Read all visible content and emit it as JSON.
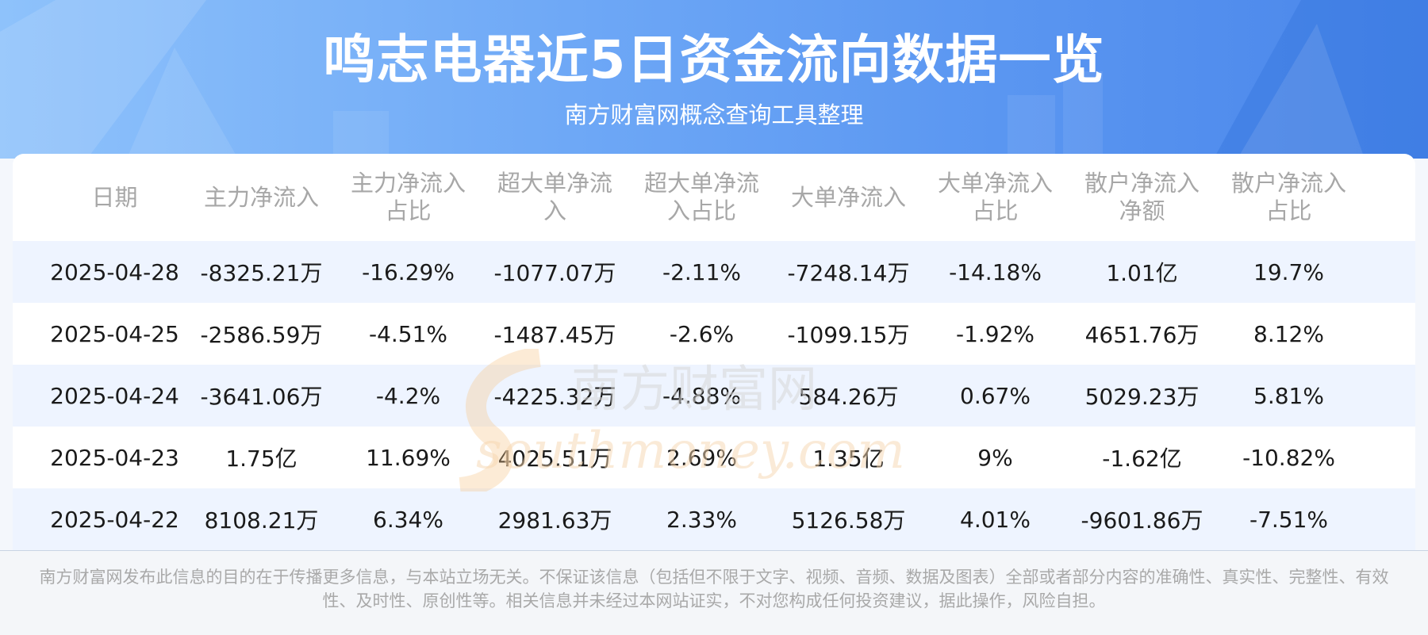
{
  "header": {
    "title": "鸣志电器近5日资金流向数据一览",
    "subtitle": "南方财富网概念查询工具整理"
  },
  "chart_data": {
    "type": "table",
    "columns": [
      "日期",
      "主力净流入",
      "主力净流入\n占比",
      "超大单净流\n入",
      "超大单净流\n入占比",
      "大单净流入",
      "大单净流入\n占比",
      "散户净流入\n净额",
      "散户净流入\n占比"
    ],
    "rows": [
      [
        "2025-04-28",
        "-8325.21万",
        "-16.29%",
        "-1077.07万",
        "-2.11%",
        "-7248.14万",
        "-14.18%",
        "1.01亿",
        "19.7%"
      ],
      [
        "2025-04-25",
        "-2586.59万",
        "-4.51%",
        "-1487.45万",
        "-2.6%",
        "-1099.15万",
        "-1.92%",
        "4651.76万",
        "8.12%"
      ],
      [
        "2025-04-24",
        "-3641.06万",
        "-4.2%",
        "-4225.32万",
        "-4.88%",
        "584.26万",
        "0.67%",
        "5029.23万",
        "5.81%"
      ],
      [
        "2025-04-23",
        "1.75亿",
        "11.69%",
        "4025.51万",
        "2.69%",
        "1.35亿",
        "9%",
        "-1.62亿",
        "-10.82%"
      ],
      [
        "2025-04-22",
        "8108.21万",
        "6.34%",
        "2981.63万",
        "2.33%",
        "5126.58万",
        "4.01%",
        "-9601.86万",
        "-7.51%"
      ]
    ]
  },
  "watermark": {
    "cn": "南方财富网",
    "en": "southmoney.com"
  },
  "footer": {
    "disclaimer": "南方财富网发布此信息的目的在于传播更多信息，与本站立场无关。不保证该信息（包括但不限于文字、视频、音频、数据及图表）全部或者部分内容的准确性、真实性、完整性、有效性、及时性、原创性等。相关信息并未经过本网站证实，不对您构成任何投资建议，据此操作，风险自担。"
  },
  "colors": {
    "banner_start": "#8ec2fb",
    "banner_end": "#4a86ea",
    "row_alt": "#eef4ff",
    "header_text": "#a7a7a7"
  }
}
